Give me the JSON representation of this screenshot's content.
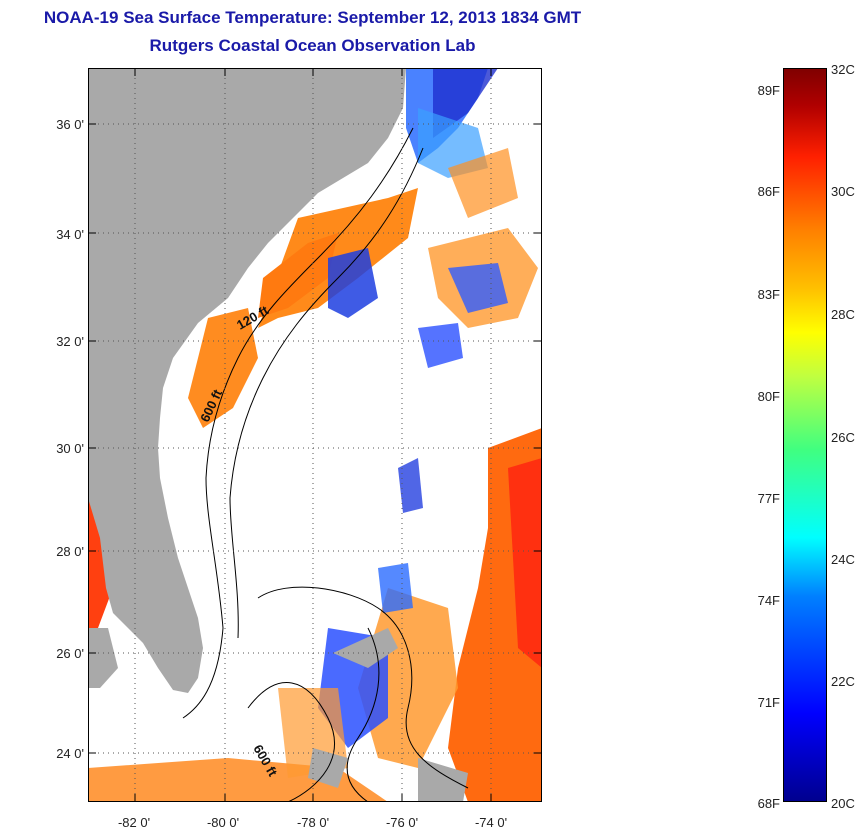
{
  "header": {
    "title": "NOAA-19 Sea Surface Temperature:  September 12, 2013 1834 GMT",
    "subtitle": "Rutgers Coastal Ocean Observation Lab"
  },
  "map": {
    "lat_labels": [
      "36 0'",
      "34 0'",
      "32 0'",
      "30 0'",
      "28 0'",
      "26 0'",
      "24 0'"
    ],
    "lon_labels": [
      "-82 0'",
      "-80 0'",
      "-78 0'",
      "-76 0'",
      "-74 0'"
    ],
    "isobath_labels": [
      "120 ft",
      "600 ft",
      "600 ft"
    ],
    "colors": {
      "land": "#a9a9a9",
      "ocean": "#ffffff",
      "grid": "#555555"
    }
  },
  "colorbar": {
    "fahrenheit_labels": [
      "89F",
      "86F",
      "83F",
      "80F",
      "77F",
      "74F",
      "71F",
      "68F"
    ],
    "celsius_labels": [
      "32C",
      "30C",
      "28C",
      "26C",
      "24C",
      "22C",
      "20C"
    ]
  }
}
